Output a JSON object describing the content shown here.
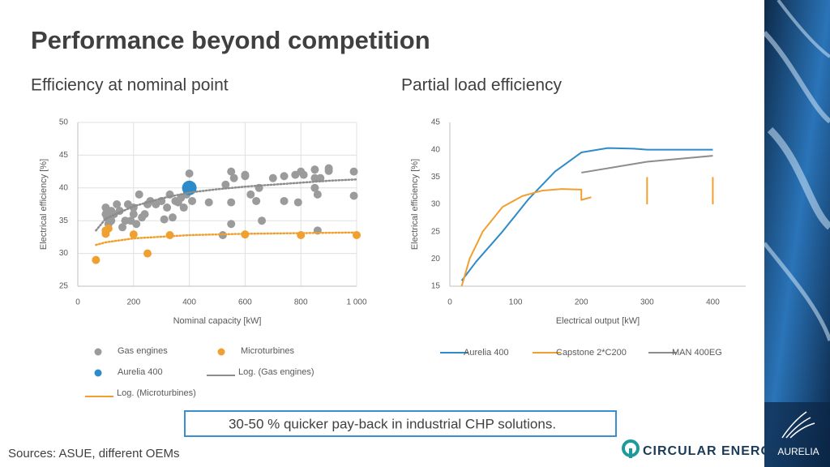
{
  "title": "Performance beyond competition",
  "callout": "30-50 % quicker pay-back in industrial CHP solutions.",
  "sources": "Sources: ASUE, different OEMs",
  "brand": "CIRCULAR ENERGY",
  "logo": "AURELIA",
  "chart_data": [
    {
      "type": "scatter",
      "title": "Efficiency at nominal point",
      "x_label": "Nominal capacity [kW]",
      "y_label": "Electrical efficiency [%]",
      "xlim": [
        0,
        1000
      ],
      "ylim": [
        25,
        50
      ],
      "xticks": [
        0,
        200,
        400,
        600,
        800,
        {
          "value": 1000,
          "label": "1 000"
        }
      ],
      "yticks": [
        25,
        30,
        35,
        40,
        45,
        50
      ],
      "grid": true,
      "series": [
        {
          "name": "Gas engines",
          "color": "#9b9b9b",
          "x": [
            100,
            100,
            105,
            110,
            120,
            120,
            130,
            140,
            150,
            160,
            170,
            180,
            190,
            200,
            200,
            210,
            220,
            230,
            240,
            250,
            260,
            280,
            300,
            310,
            320,
            330,
            340,
            350,
            360,
            370,
            380,
            390,
            400,
            410,
            470,
            520,
            530,
            550,
            550,
            550,
            560,
            600,
            600,
            620,
            640,
            650,
            660,
            700,
            740,
            740,
            780,
            790,
            800,
            810,
            850,
            850,
            850,
            860,
            860,
            900,
            900,
            990,
            990,
            870
          ],
          "values": [
            37,
            36,
            35.5,
            34.5,
            36.5,
            35,
            36,
            37.5,
            36.5,
            34,
            35,
            37.5,
            35,
            36,
            37,
            34.5,
            39,
            35.5,
            36,
            37.5,
            38,
            37.5,
            38,
            35.2,
            37,
            39,
            35.5,
            38,
            37.8,
            38.5,
            37,
            39,
            42.2,
            38,
            37.8,
            32.8,
            40.5,
            42.5,
            34.5,
            37.8,
            41.5,
            41.8,
            42,
            39,
            38,
            40,
            35,
            41.5,
            41.8,
            38,
            42,
            37.8,
            42.5,
            42,
            42.8,
            41.5,
            40,
            39,
            33.5,
            43,
            42.6,
            42.5,
            38.8,
            41.5
          ]
        },
        {
          "name": "Microturbines",
          "color": "#f0a030",
          "x": [
            65,
            100,
            100,
            110,
            200,
            250,
            330,
            600,
            800,
            1000
          ],
          "values": [
            29,
            33,
            33.5,
            33.8,
            32.9,
            30,
            32.8,
            32.9,
            32.8,
            32.8
          ]
        },
        {
          "name": "Aurelia 400",
          "color": "#2e8bc9",
          "x": [
            400
          ],
          "values": [
            40
          ]
        },
        {
          "name": "Log. (Gas engines)",
          "color": "#8c8c8c",
          "line": "dotted",
          "x": [
            65,
            100,
            200,
            300,
            400,
            500,
            600,
            700,
            800,
            900,
            1000
          ],
          "values": [
            33.5,
            35.3,
            37.2,
            38.4,
            39.3,
            39.8,
            40.2,
            40.5,
            40.8,
            41.1,
            41.3
          ]
        },
        {
          "name": "Log. (Microturbines)",
          "color": "#f0a030",
          "line": "dotted",
          "x": [
            65,
            100,
            200,
            400,
            600,
            800,
            1000
          ],
          "values": [
            31.3,
            31.7,
            32.3,
            32.8,
            33,
            33.1,
            33.2
          ]
        }
      ]
    },
    {
      "type": "line",
      "title": "Partial load efficiency",
      "x_label": "Electrical output [kW]",
      "y_label": "Electrical efficiency [%]",
      "xlim": [
        0,
        450
      ],
      "ylim": [
        15,
        45
      ],
      "xticks": [
        0,
        100,
        200,
        300,
        400
      ],
      "yticks": [
        15,
        20,
        25,
        30,
        35,
        40,
        45
      ],
      "grid": false,
      "series": [
        {
          "name": "Aurelia 400",
          "color": "#2e8bc9",
          "x": [
            18,
            40,
            80,
            120,
            160,
            200,
            240,
            280,
            300,
            340,
            400
          ],
          "values": [
            16,
            19.5,
            25,
            31,
            36,
            39.5,
            40.3,
            40.2,
            40,
            40,
            40
          ]
        },
        {
          "name": "Capstone 2*C200",
          "color": "#f0a030",
          "x": [
            18,
            30,
            50,
            80,
            110,
            140,
            170,
            200,
            200,
            215,
            null,
            300,
            300,
            null,
            400,
            400
          ],
          "values": [
            15,
            20,
            25,
            29.5,
            31.5,
            32.5,
            32.8,
            32.7,
            30.8,
            31.3,
            null,
            30,
            35,
            null,
            30,
            35
          ]
        },
        {
          "name": "MAN 400EG",
          "color": "#8c8c8c",
          "x": [
            200,
            300,
            400
          ],
          "values": [
            35.8,
            37.8,
            38.9
          ]
        }
      ]
    }
  ]
}
